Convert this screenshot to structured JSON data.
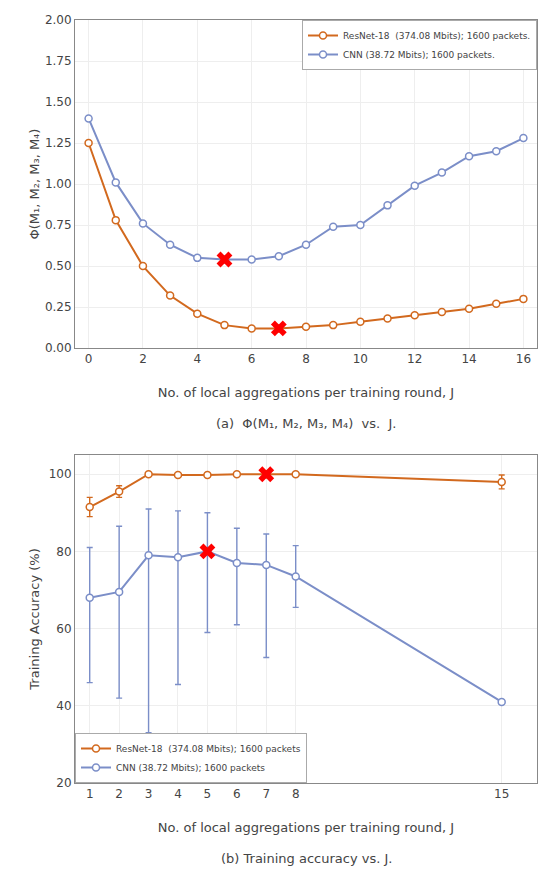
{
  "chart_data": [
    {
      "type": "line",
      "title": "(a)  Φ(M₁, M₂, M₃, M₄)  vs.  J.",
      "xlabel": "No. of local aggregations per training round, J",
      "ylabel": "Φ(M₁, M₂, M₃, M₄)",
      "xlim": [
        -0.5,
        16.5
      ],
      "ylim": [
        0.0,
        2.0
      ],
      "xticks": [
        0,
        2,
        4,
        6,
        8,
        10,
        12,
        14,
        16
      ],
      "yticks": [
        {
          "value": 0.0,
          "label": "0.00"
        },
        0.25,
        {
          "value": 0.5,
          "label": "0.50"
        },
        0.75,
        {
          "value": 1.0,
          "label": "1.00"
        },
        1.25,
        {
          "value": 1.5,
          "label": "1.50"
        },
        1.75,
        {
          "value": 2.0,
          "label": "2.00"
        }
      ],
      "grid": true,
      "legend": "upper right",
      "series": [
        {
          "name": "ResNet-18  (374.08 Mbits); 1600 packets.",
          "color": "#d2691e",
          "marker": "circle",
          "line_style": "solid",
          "x": [
            0,
            1,
            2,
            3,
            4,
            5,
            6,
            7,
            8,
            9,
            10,
            11,
            12,
            13,
            14,
            15,
            16
          ],
          "values": [
            1.25,
            0.78,
            0.5,
            0.32,
            0.21,
            0.14,
            0.12,
            0.12,
            0.13,
            0.14,
            0.16,
            0.18,
            0.2,
            0.22,
            0.24,
            0.27,
            0.3
          ]
        },
        {
          "name": "CNN (38.72 Mbits); 1600 packets.",
          "color": "#7b8ec8",
          "marker": "circle",
          "line_style": "solid",
          "x": [
            0,
            1,
            2,
            3,
            4,
            5,
            6,
            7,
            8,
            9,
            10,
            11,
            12,
            13,
            14,
            15,
            16
          ],
          "values": [
            1.4,
            1.01,
            0.76,
            0.63,
            0.55,
            0.54,
            0.54,
            0.56,
            0.63,
            0.74,
            0.75,
            0.87,
            0.99,
            1.07,
            1.17,
            1.2,
            1.28
          ]
        },
        {
          "color": "red",
          "marker": "x",
          "line_style": "none",
          "x": [
            7
          ],
          "values": [
            0.12
          ]
        },
        {
          "color": "red",
          "marker": "x",
          "line_style": "none",
          "x": [
            5
          ],
          "values": [
            0.54
          ]
        }
      ]
    },
    {
      "type": "line",
      "title": "(b) Training accuracy vs. J.",
      "xlabel": "No. of local aggregations per training round, J",
      "ylabel": "Training Accuracy (%)",
      "xlim": [
        0.5,
        16.2
      ],
      "ylim": [
        20,
        105
      ],
      "xticks": [
        1,
        2,
        3,
        4,
        5,
        6,
        7,
        8,
        15
      ],
      "yticks": [
        20,
        40,
        60,
        80,
        100
      ],
      "grid": true,
      "legend": "lower left",
      "series": [
        {
          "name": "ResNet-18  (374.08 Mbits); 1600 packets",
          "color": "#d2691e",
          "marker": "circle",
          "line_style": "solid",
          "x": [
            1,
            2,
            3,
            4,
            5,
            6,
            7,
            8,
            15
          ],
          "values": [
            91.5,
            95.5,
            100.0,
            99.8,
            99.8,
            100.0,
            100.0,
            100.0,
            98.0
          ],
          "errors": [
            2.5,
            1.5,
            0.3,
            0.3,
            0.3,
            0.3,
            0.3,
            0.3,
            1.8
          ]
        },
        {
          "name": "CNN (38.72 Mbits); 1600 packets",
          "color": "#7b8ec8",
          "marker": "circle",
          "line_style": "solid",
          "x": [
            1,
            2,
            3,
            4,
            5,
            6,
            7,
            8,
            15
          ],
          "values": [
            68.0,
            69.5,
            79.0,
            78.5,
            80.0,
            77.0,
            76.5,
            73.5,
            41.0
          ],
          "errors_low": [
            22.0,
            27.5,
            46.0,
            33.0,
            21.0,
            16.0,
            24.0,
            8.0,
            0.5
          ],
          "errors_high": [
            13.0,
            17.0,
            12.0,
            12.0,
            10.0,
            9.0,
            8.0,
            8.0,
            0.5
          ]
        },
        {
          "color": "red",
          "marker": "x",
          "line_style": "none",
          "x": [
            7
          ],
          "values": [
            100.0
          ]
        },
        {
          "color": "red",
          "marker": "x",
          "line_style": "none",
          "x": [
            5
          ],
          "values": [
            80.0
          ]
        }
      ]
    }
  ]
}
